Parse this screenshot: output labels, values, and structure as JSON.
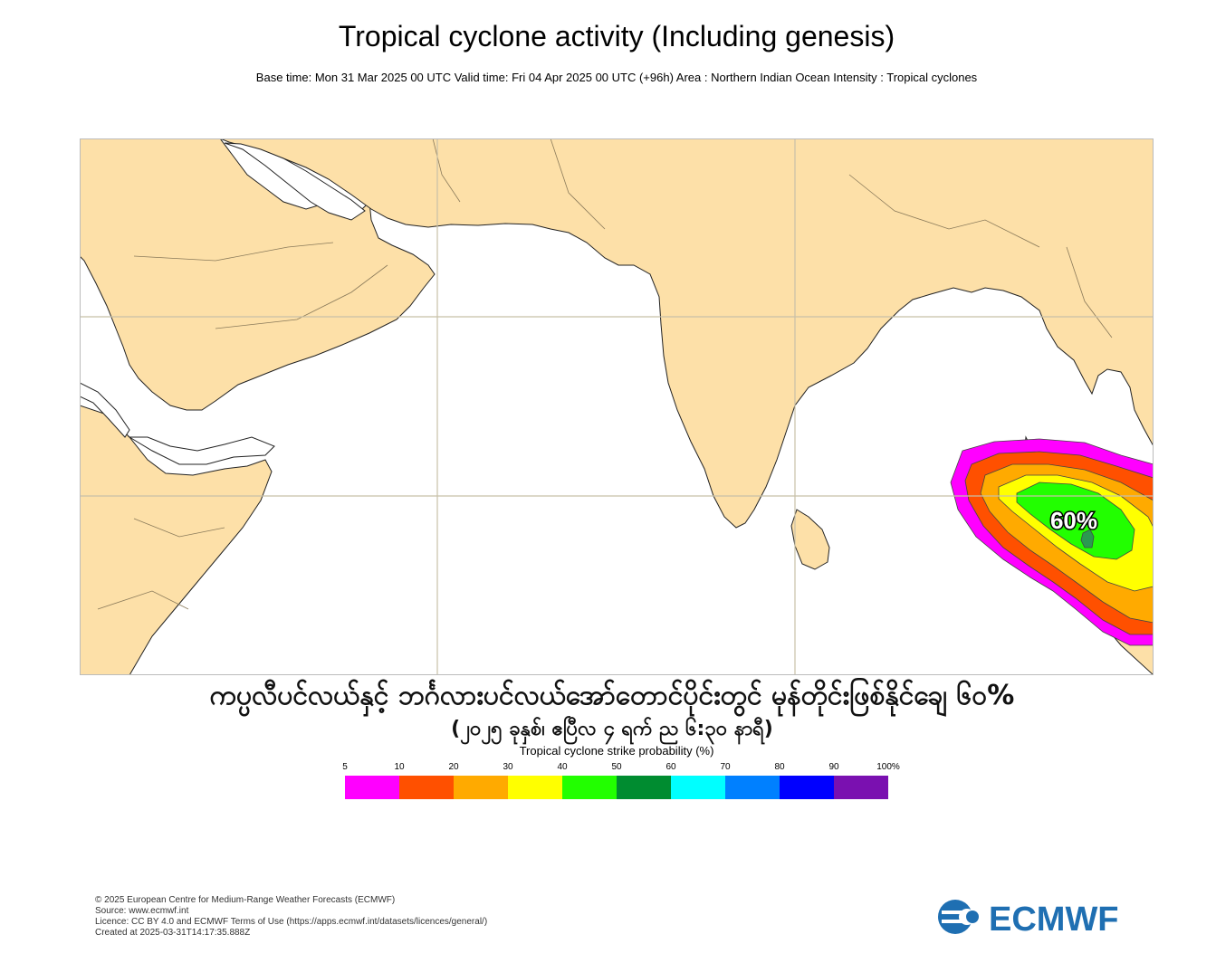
{
  "header": {
    "title": "Tropical cyclone activity (Including genesis)",
    "subtitle": "Base time: Mon 31 Mar 2025 00 UTC Valid time: Fri 04 Apr 2025 00 UTC (+96h) Area : Northern Indian Ocean Intensity : Tropical cyclones"
  },
  "map": {
    "land_color": "#fde0a8",
    "ocean_color": "#ffffff",
    "peak_label": "60%"
  },
  "overlay": {
    "line1": "ကပ္ပလီပင်လယ်နှင့် ဘင်္ဂလားပင်လယ်အော်တောင်ပိုင်းတွင် မုန်တိုင်းဖြစ်နိုင်ချေ ၆၀%",
    "line2": "(၂၀၂၅ ခုနှစ်၊ ဧပြီလ ၄ ရက် ည ၆:၃၀ နာရီ)"
  },
  "legend": {
    "title": "Tropical cyclone strike probability (%)",
    "ticks": [
      "5",
      "10",
      "20",
      "30",
      "40",
      "50",
      "60",
      "70",
      "80",
      "90",
      "100%"
    ],
    "colors": [
      "#ff00ff",
      "#ff5000",
      "#ffaa00",
      "#ffff00",
      "#22ff00",
      "#008c30",
      "#00ffff",
      "#0080ff",
      "#0000ff",
      "#7a10b0"
    ]
  },
  "footer": {
    "copyright": "© 2025 European Centre for Medium-Range Weather Forecasts (ECMWF)",
    "source": "Source: www.ecmwf.int",
    "licence": "Licence: CC BY 4.0 and ECMWF Terms of Use (https://apps.ecmwf.int/datasets/licences/general/)",
    "created": "Created at 2025-03-31T14:17:35.888Z"
  },
  "logo": {
    "text": "ECMWF",
    "color": "#1f6fb2"
  }
}
